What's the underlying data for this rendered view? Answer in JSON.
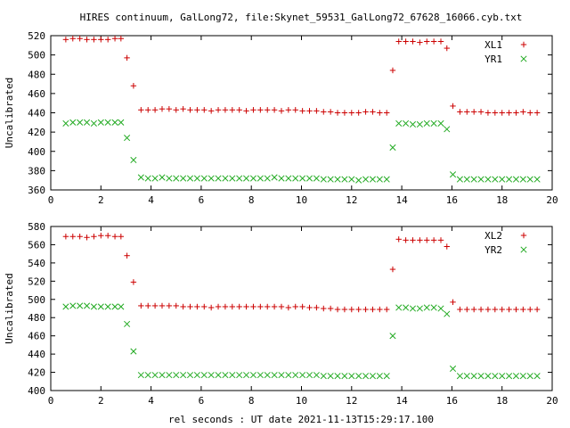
{
  "title": "HIRES continuum, GalLong72, file:Skynet_59531_GalLong72_67628_16066.cyb.txt",
  "xlabel": "rel seconds : UT date 2021-11-13T15:29:17.100",
  "colors": {
    "red": "#cc0000",
    "green": "#22aa22"
  },
  "chart_data": [
    {
      "type": "scatter",
      "ylabel": "Uncalibrated",
      "xlim": [
        0,
        20
      ],
      "ylim": [
        360,
        520
      ],
      "xticks": [
        0,
        2,
        4,
        6,
        8,
        10,
        12,
        14,
        16,
        18,
        20
      ],
      "yticks": [
        360,
        380,
        400,
        420,
        440,
        460,
        480,
        500,
        520
      ],
      "legend": "top-right",
      "series": [
        {
          "name": "XL1",
          "marker": "plus",
          "color": "red",
          "x": [
            0.6,
            0.88,
            1.16,
            1.44,
            1.72,
            2.0,
            2.28,
            2.56,
            2.8,
            3.04,
            3.3,
            3.6,
            3.88,
            4.16,
            4.44,
            4.72,
            5.0,
            5.28,
            5.56,
            5.84,
            6.12,
            6.4,
            6.68,
            6.96,
            7.24,
            7.52,
            7.8,
            8.08,
            8.36,
            8.64,
            8.92,
            9.2,
            9.48,
            9.76,
            10.04,
            10.32,
            10.6,
            10.88,
            11.16,
            11.44,
            11.72,
            12.0,
            12.28,
            12.56,
            12.84,
            13.12,
            13.4,
            13.64,
            13.88,
            14.16,
            14.44,
            14.72,
            15.0,
            15.28,
            15.56,
            15.8,
            16.04,
            16.32,
            16.6,
            16.88,
            17.16,
            17.44,
            17.72,
            18.0,
            18.28,
            18.56,
            18.84,
            19.12,
            19.4
          ],
          "y": [
            516,
            517,
            517,
            516,
            516,
            516,
            516,
            517,
            517,
            497,
            468,
            443,
            443,
            443,
            444,
            444,
            443,
            444,
            443,
            443,
            443,
            442,
            443,
            443,
            443,
            443,
            442,
            443,
            443,
            443,
            443,
            442,
            443,
            443,
            442,
            442,
            442,
            441,
            441,
            440,
            440,
            440,
            440,
            441,
            441,
            440,
            440,
            484,
            514,
            514,
            514,
            513,
            514,
            514,
            514,
            507,
            447,
            441,
            441,
            441,
            441,
            440,
            440,
            440,
            440,
            440,
            441,
            440,
            440
          ]
        },
        {
          "name": "YR1",
          "marker": "cross",
          "color": "green",
          "x": [
            0.6,
            0.88,
            1.16,
            1.44,
            1.72,
            2.0,
            2.28,
            2.56,
            2.8,
            3.04,
            3.3,
            3.6,
            3.88,
            4.16,
            4.44,
            4.72,
            5.0,
            5.28,
            5.56,
            5.84,
            6.12,
            6.4,
            6.68,
            6.96,
            7.24,
            7.52,
            7.8,
            8.08,
            8.36,
            8.64,
            8.92,
            9.2,
            9.48,
            9.76,
            10.04,
            10.32,
            10.6,
            10.88,
            11.16,
            11.44,
            11.72,
            12.0,
            12.28,
            12.56,
            12.84,
            13.12,
            13.4,
            13.64,
            13.88,
            14.16,
            14.44,
            14.72,
            15.0,
            15.28,
            15.56,
            15.8,
            16.04,
            16.32,
            16.6,
            16.88,
            17.16,
            17.44,
            17.72,
            18.0,
            18.28,
            18.56,
            18.84,
            19.12,
            19.4
          ],
          "y": [
            429,
            430,
            430,
            430,
            429,
            430,
            430,
            430,
            430,
            414,
            391,
            373,
            372,
            372,
            373,
            372,
            372,
            372,
            372,
            372,
            372,
            372,
            372,
            372,
            372,
            372,
            372,
            372,
            372,
            372,
            373,
            372,
            372,
            372,
            372,
            372,
            372,
            371,
            371,
            371,
            371,
            371,
            370,
            371,
            371,
            371,
            371,
            404,
            429,
            429,
            428,
            428,
            429,
            429,
            429,
            423,
            376,
            371,
            371,
            371,
            371,
            371,
            371,
            371,
            371,
            371,
            371,
            371,
            371
          ]
        }
      ]
    },
    {
      "type": "scatter",
      "ylabel": "Uncalibrated",
      "xlim": [
        0,
        20
      ],
      "ylim": [
        400,
        580
      ],
      "xticks": [
        0,
        2,
        4,
        6,
        8,
        10,
        12,
        14,
        16,
        18,
        20
      ],
      "yticks": [
        400,
        420,
        440,
        460,
        480,
        500,
        520,
        540,
        560,
        580
      ],
      "legend": "top-right",
      "series": [
        {
          "name": "XL2",
          "marker": "plus",
          "color": "red",
          "x": [
            0.6,
            0.88,
            1.16,
            1.44,
            1.72,
            2.0,
            2.28,
            2.56,
            2.8,
            3.04,
            3.3,
            3.6,
            3.88,
            4.16,
            4.44,
            4.72,
            5.0,
            5.28,
            5.56,
            5.84,
            6.12,
            6.4,
            6.68,
            6.96,
            7.24,
            7.52,
            7.8,
            8.08,
            8.36,
            8.64,
            8.92,
            9.2,
            9.48,
            9.76,
            10.04,
            10.32,
            10.6,
            10.88,
            11.16,
            11.44,
            11.72,
            12.0,
            12.28,
            12.56,
            12.84,
            13.12,
            13.4,
            13.64,
            13.88,
            14.16,
            14.44,
            14.72,
            15.0,
            15.28,
            15.56,
            15.8,
            16.04,
            16.32,
            16.6,
            16.88,
            17.16,
            17.44,
            17.72,
            18.0,
            18.28,
            18.56,
            18.84,
            19.12,
            19.4
          ],
          "y": [
            569,
            569,
            569,
            568,
            569,
            570,
            570,
            569,
            569,
            548,
            519,
            493,
            493,
            493,
            493,
            493,
            493,
            492,
            492,
            492,
            492,
            491,
            492,
            492,
            492,
            492,
            492,
            492,
            492,
            492,
            492,
            492,
            491,
            492,
            492,
            491,
            491,
            490,
            490,
            489,
            489,
            489,
            489,
            489,
            489,
            489,
            489,
            533,
            566,
            565,
            565,
            565,
            565,
            565,
            565,
            558,
            497,
            489,
            489,
            489,
            489,
            489,
            489,
            489,
            489,
            489,
            489,
            489,
            489
          ]
        },
        {
          "name": "YR2",
          "marker": "cross",
          "color": "green",
          "x": [
            0.6,
            0.88,
            1.16,
            1.44,
            1.72,
            2.0,
            2.28,
            2.56,
            2.8,
            3.04,
            3.3,
            3.6,
            3.88,
            4.16,
            4.44,
            4.72,
            5.0,
            5.28,
            5.56,
            5.84,
            6.12,
            6.4,
            6.68,
            6.96,
            7.24,
            7.52,
            7.8,
            8.08,
            8.36,
            8.64,
            8.92,
            9.2,
            9.48,
            9.76,
            10.04,
            10.32,
            10.6,
            10.88,
            11.16,
            11.44,
            11.72,
            12.0,
            12.28,
            12.56,
            12.84,
            13.12,
            13.4,
            13.64,
            13.88,
            14.16,
            14.44,
            14.72,
            15.0,
            15.28,
            15.56,
            15.8,
            16.04,
            16.32,
            16.6,
            16.88,
            17.16,
            17.44,
            17.72,
            18.0,
            18.28,
            18.56,
            18.84,
            19.12,
            19.4
          ],
          "y": [
            492,
            493,
            493,
            493,
            492,
            492,
            492,
            492,
            492,
            473,
            443,
            417,
            417,
            417,
            417,
            417,
            417,
            417,
            417,
            417,
            417,
            417,
            417,
            417,
            417,
            417,
            417,
            417,
            417,
            417,
            417,
            417,
            417,
            417,
            417,
            417,
            417,
            416,
            416,
            416,
            416,
            416,
            416,
            416,
            416,
            416,
            416,
            460,
            491,
            491,
            490,
            490,
            491,
            491,
            490,
            484,
            424,
            416,
            416,
            416,
            416,
            416,
            416,
            416,
            416,
            416,
            416,
            416,
            416
          ]
        }
      ]
    }
  ]
}
